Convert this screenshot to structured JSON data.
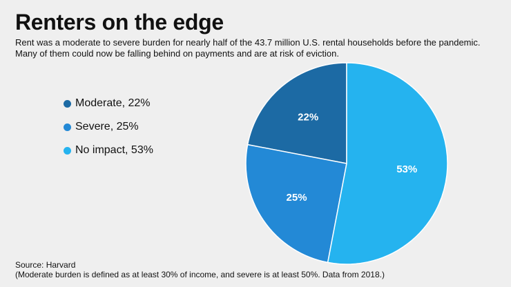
{
  "header": {
    "title": "Renters on the edge",
    "subtitle_line1": "Rent was a moderate to severe burden for nearly half of the 43.7 million U.S. rental households before the pandemic.",
    "subtitle_line2": "Many of them could now be falling behind on payments and are at risk of eviction."
  },
  "footer": {
    "source": "Source: Harvard",
    "note": "(Moderate burden is defined as at least 30% of income, and severe is at least 50%. Data from 2018.)"
  },
  "chart_data": {
    "type": "pie",
    "title": "Renters on the edge",
    "categories": [
      "Moderate",
      "Severe",
      "No impact"
    ],
    "values": [
      22,
      25,
      53
    ],
    "legend_labels": [
      "Moderate, 22%",
      "Severe, 25%",
      "No impact, 53%"
    ],
    "slice_labels": [
      "22%",
      "25%",
      "53%"
    ],
    "colors": [
      "#1c6aa4",
      "#2389d6",
      "#25b3ef"
    ],
    "legend_position": "left"
  }
}
